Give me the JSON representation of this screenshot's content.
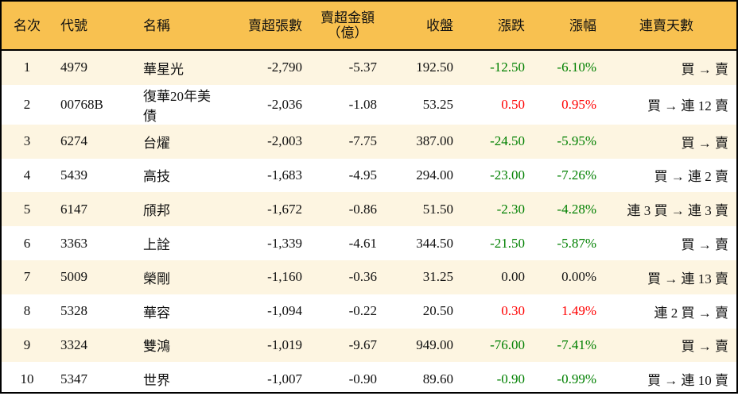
{
  "headers": [
    "名次",
    "代號",
    "名稱",
    "賣超張數",
    "賣超金額\n（億）",
    "收盤",
    "漲跌",
    "漲幅",
    "連賣天數"
  ],
  "colors": {
    "header_bg": "#F8C150",
    "row_alt_bg": "#FDF5E1",
    "up": "#FF0000",
    "down": "#008000"
  },
  "rows": [
    {
      "rank": "1",
      "code": "4979",
      "name": "華星光",
      "shares": "-2,790",
      "amount": "-5.37",
      "close": "192.50",
      "change": "-12.50",
      "pct": "-6.10%",
      "streak": "買 → 賣",
      "dir": "down"
    },
    {
      "rank": "2",
      "code": "00768B",
      "name": "復華20年美債",
      "shares": "-2,036",
      "amount": "-1.08",
      "close": "53.25",
      "change": "0.50",
      "pct": "0.95%",
      "streak": "買 → 連 12 賣",
      "dir": "up"
    },
    {
      "rank": "3",
      "code": "6274",
      "name": "台燿",
      "shares": "-2,003",
      "amount": "-7.75",
      "close": "387.00",
      "change": "-24.50",
      "pct": "-5.95%",
      "streak": "買 → 賣",
      "dir": "down"
    },
    {
      "rank": "4",
      "code": "5439",
      "name": "高技",
      "shares": "-1,683",
      "amount": "-4.95",
      "close": "294.00",
      "change": "-23.00",
      "pct": "-7.26%",
      "streak": "買 → 連 2 賣",
      "dir": "down"
    },
    {
      "rank": "5",
      "code": "6147",
      "name": "頎邦",
      "shares": "-1,672",
      "amount": "-0.86",
      "close": "51.50",
      "change": "-2.30",
      "pct": "-4.28%",
      "streak": "連 3 買 → 連 3 賣",
      "dir": "down"
    },
    {
      "rank": "6",
      "code": "3363",
      "name": "上詮",
      "shares": "-1,339",
      "amount": "-4.61",
      "close": "344.50",
      "change": "-21.50",
      "pct": "-5.87%",
      "streak": "買 → 賣",
      "dir": "down"
    },
    {
      "rank": "7",
      "code": "5009",
      "name": "榮剛",
      "shares": "-1,160",
      "amount": "-0.36",
      "close": "31.25",
      "change": "0.00",
      "pct": "0.00%",
      "streak": "買 → 連 13 賣",
      "dir": "flat"
    },
    {
      "rank": "8",
      "code": "5328",
      "name": "華容",
      "shares": "-1,094",
      "amount": "-0.22",
      "close": "20.50",
      "change": "0.30",
      "pct": "1.49%",
      "streak": "連 2 買 → 賣",
      "dir": "up"
    },
    {
      "rank": "9",
      "code": "3324",
      "name": "雙鴻",
      "shares": "-1,019",
      "amount": "-9.67",
      "close": "949.00",
      "change": "-76.00",
      "pct": "-7.41%",
      "streak": "買 → 賣",
      "dir": "down"
    },
    {
      "rank": "10",
      "code": "5347",
      "name": "世界",
      "shares": "-1,007",
      "amount": "-0.90",
      "close": "89.60",
      "change": "-0.90",
      "pct": "-0.99%",
      "streak": "買 → 連 10 賣",
      "dir": "down"
    }
  ]
}
